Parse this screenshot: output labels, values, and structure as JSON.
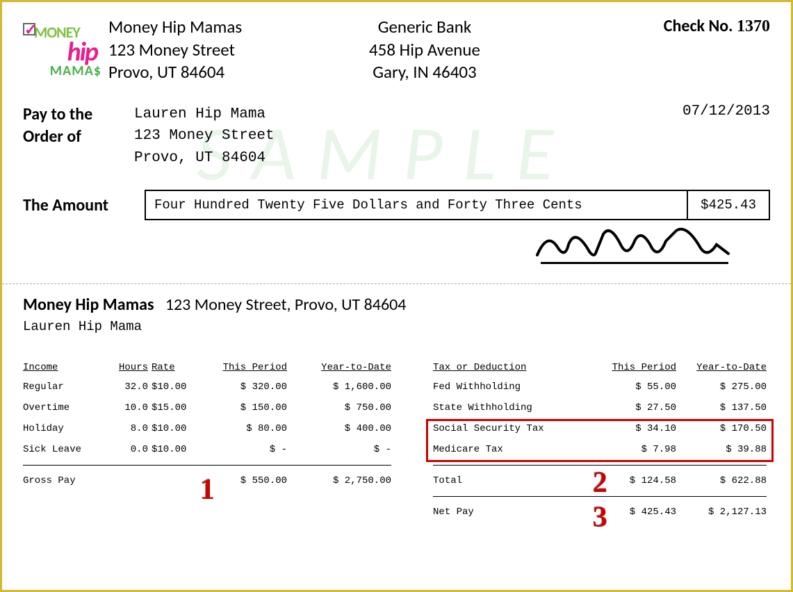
{
  "watermark": "SAMPLE",
  "logo": {
    "word1": "MONEY",
    "word2": "hip",
    "word3": "MAMA$"
  },
  "company": {
    "name": "Money Hip Mamas",
    "street": "123 Money Street",
    "city": "Provo, UT 84604"
  },
  "bank": {
    "name": "Generic Bank",
    "street": "458 Hip Avenue",
    "city": "Gary, IN 46403"
  },
  "check_no_label": "Check No. ",
  "check_no": "1370",
  "pay_label_1": "Pay to the",
  "pay_label_2": "Order of",
  "payee": {
    "name": "Lauren Hip Mama",
    "street": "123 Money Street",
    "city": "Provo, UT 84604"
  },
  "date": "07/12/2013",
  "amount_label": "The Amount",
  "amount_words": "Four Hundred Twenty Five Dollars and Forty Three Cents",
  "amount_num": "$425.43",
  "stub": {
    "company": "Money Hip Mamas",
    "addr": "123 Money Street, Provo, UT 84604",
    "employee": "Lauren Hip Mama"
  },
  "income_headers": {
    "c1": "Income",
    "c2": "Hours",
    "c3": "Rate",
    "c4": "This Period",
    "c5": "Year-to-Date"
  },
  "income_rows": [
    {
      "name": "Regular",
      "hours": "32.0",
      "rate": "$10.00",
      "tp": "$  320.00",
      "ytd": "$ 1,600.00"
    },
    {
      "name": "Overtime",
      "hours": "10.0",
      "rate": "$15.00",
      "tp": "$  150.00",
      "ytd": "$   750.00"
    },
    {
      "name": "Holiday",
      "hours": "8.0",
      "rate": "$10.00",
      "tp": "$   80.00",
      "ytd": "$   400.00"
    },
    {
      "name": "Sick Leave",
      "hours": "0.0",
      "rate": "$10.00",
      "tp": "$    -",
      "ytd": "$     -"
    }
  ],
  "gross": {
    "name": "Gross Pay",
    "tp": "$  550.00",
    "ytd": "$ 2,750.00"
  },
  "tax_headers": {
    "c1": "Tax  or Deduction",
    "c2": "This Period",
    "c3": "Year-to-Date"
  },
  "tax_rows": [
    {
      "name": "Fed Withholding",
      "tp": "$   55.00",
      "ytd": "$   275.00"
    },
    {
      "name": "State Withholding",
      "tp": "$   27.50",
      "ytd": "$   137.50"
    },
    {
      "name": "Social Security Tax",
      "tp": "$   34.10",
      "ytd": "$   170.50"
    },
    {
      "name": "Medicare Tax",
      "tp": "$    7.98",
      "ytd": "$    39.88"
    }
  ],
  "tax_total": {
    "name": "Total",
    "tp": "$  124.58",
    "ytd": "$   622.88"
  },
  "netpay": {
    "name": "Net Pay",
    "tp": "$  425.43",
    "ytd": "$ 2,127.13"
  },
  "callouts": {
    "n1": "1",
    "n2": "2",
    "n3": "3"
  },
  "colors": {
    "border": "#d4b830",
    "red": "#cc0000",
    "watermark": "#e8f5e8",
    "pink": "#e91e8c",
    "green": "#4caf50"
  }
}
